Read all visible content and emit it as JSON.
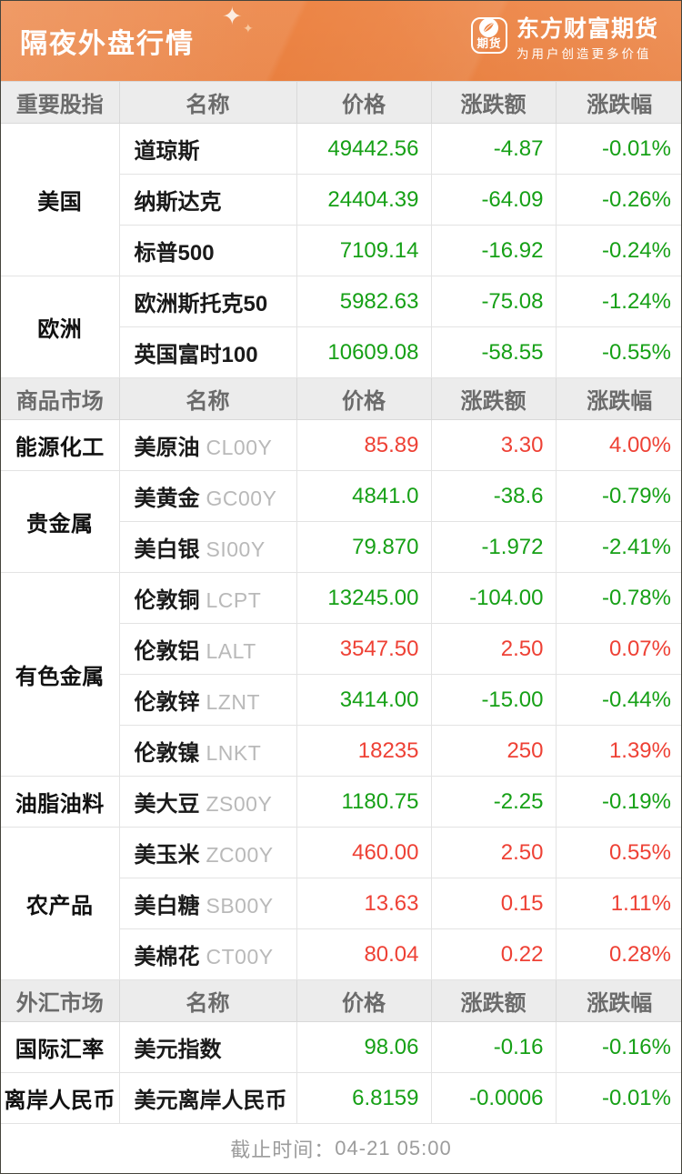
{
  "header": {
    "title": "隔夜外盘行情",
    "brand": {
      "badge_text": "期货",
      "name": "东方财富期货",
      "slogan": "为用户创造更多价值"
    }
  },
  "colors": {
    "accent_orange": "#ed8647",
    "up_red": "#ee4135",
    "down_green": "#16a016",
    "header_gray_bg": "#ececec",
    "code_gray": "#b9b9b9"
  },
  "columns": [
    "名称",
    "价格",
    "涨跌额",
    "涨跌幅"
  ],
  "sections": [
    {
      "title": "重要股指",
      "groups": [
        {
          "category": "美国",
          "rows": [
            {
              "name": "道琼斯",
              "code": "",
              "price": "49442.56",
              "change": "-4.87",
              "pct": "-0.01%",
              "dir": "down"
            },
            {
              "name": "纳斯达克",
              "code": "",
              "price": "24404.39",
              "change": "-64.09",
              "pct": "-0.26%",
              "dir": "down"
            },
            {
              "name": "标普500",
              "code": "",
              "price": "7109.14",
              "change": "-16.92",
              "pct": "-0.24%",
              "dir": "down"
            }
          ]
        },
        {
          "category": "欧洲",
          "rows": [
            {
              "name": "欧洲斯托克50",
              "code": "",
              "price": "5982.63",
              "change": "-75.08",
              "pct": "-1.24%",
              "dir": "down"
            },
            {
              "name": "英国富时100",
              "code": "",
              "price": "10609.08",
              "change": "-58.55",
              "pct": "-0.55%",
              "dir": "down"
            }
          ]
        }
      ]
    },
    {
      "title": "商品市场",
      "groups": [
        {
          "category": "能源化工",
          "rows": [
            {
              "name": "美原油",
              "code": "CL00Y",
              "price": "85.89",
              "change": "3.30",
              "pct": "4.00%",
              "dir": "up"
            }
          ]
        },
        {
          "category": "贵金属",
          "rows": [
            {
              "name": "美黄金",
              "code": "GC00Y",
              "price": "4841.0",
              "change": "-38.6",
              "pct": "-0.79%",
              "dir": "down"
            },
            {
              "name": "美白银",
              "code": "SI00Y",
              "price": "79.870",
              "change": "-1.972",
              "pct": "-2.41%",
              "dir": "down"
            }
          ]
        },
        {
          "category": "有色金属",
          "rows": [
            {
              "name": "伦敦铜",
              "code": "LCPT",
              "price": "13245.00",
              "change": "-104.00",
              "pct": "-0.78%",
              "dir": "down"
            },
            {
              "name": "伦敦铝",
              "code": "LALT",
              "price": "3547.50",
              "change": "2.50",
              "pct": "0.07%",
              "dir": "up"
            },
            {
              "name": "伦敦锌",
              "code": "LZNT",
              "price": "3414.00",
              "change": "-15.00",
              "pct": "-0.44%",
              "dir": "down"
            },
            {
              "name": "伦敦镍",
              "code": "LNKT",
              "price": "18235",
              "change": "250",
              "pct": "1.39%",
              "dir": "up"
            }
          ]
        },
        {
          "category": "油脂油料",
          "rows": [
            {
              "name": "美大豆",
              "code": "ZS00Y",
              "price": "1180.75",
              "change": "-2.25",
              "pct": "-0.19%",
              "dir": "down"
            }
          ]
        },
        {
          "category": "农产品",
          "rows": [
            {
              "name": "美玉米",
              "code": "ZC00Y",
              "price": "460.00",
              "change": "2.50",
              "pct": "0.55%",
              "dir": "up"
            },
            {
              "name": "美白糖",
              "code": "SB00Y",
              "price": "13.63",
              "change": "0.15",
              "pct": "1.11%",
              "dir": "up"
            },
            {
              "name": "美棉花",
              "code": "CT00Y",
              "price": "80.04",
              "change": "0.22",
              "pct": "0.28%",
              "dir": "up"
            }
          ]
        }
      ]
    },
    {
      "title": "外汇市场",
      "groups": [
        {
          "category": "国际汇率",
          "rows": [
            {
              "name": "美元指数",
              "code": "",
              "price": "98.06",
              "change": "-0.16",
              "pct": "-0.16%",
              "dir": "down"
            }
          ]
        },
        {
          "category": "离岸人民币",
          "rows": [
            {
              "name": "美元离岸人民币",
              "code": "",
              "price": "6.8159",
              "change": "-0.0006",
              "pct": "-0.01%",
              "dir": "down"
            }
          ]
        }
      ]
    }
  ],
  "footer": {
    "label": "截止时间：",
    "time": "04-21 05:00"
  }
}
